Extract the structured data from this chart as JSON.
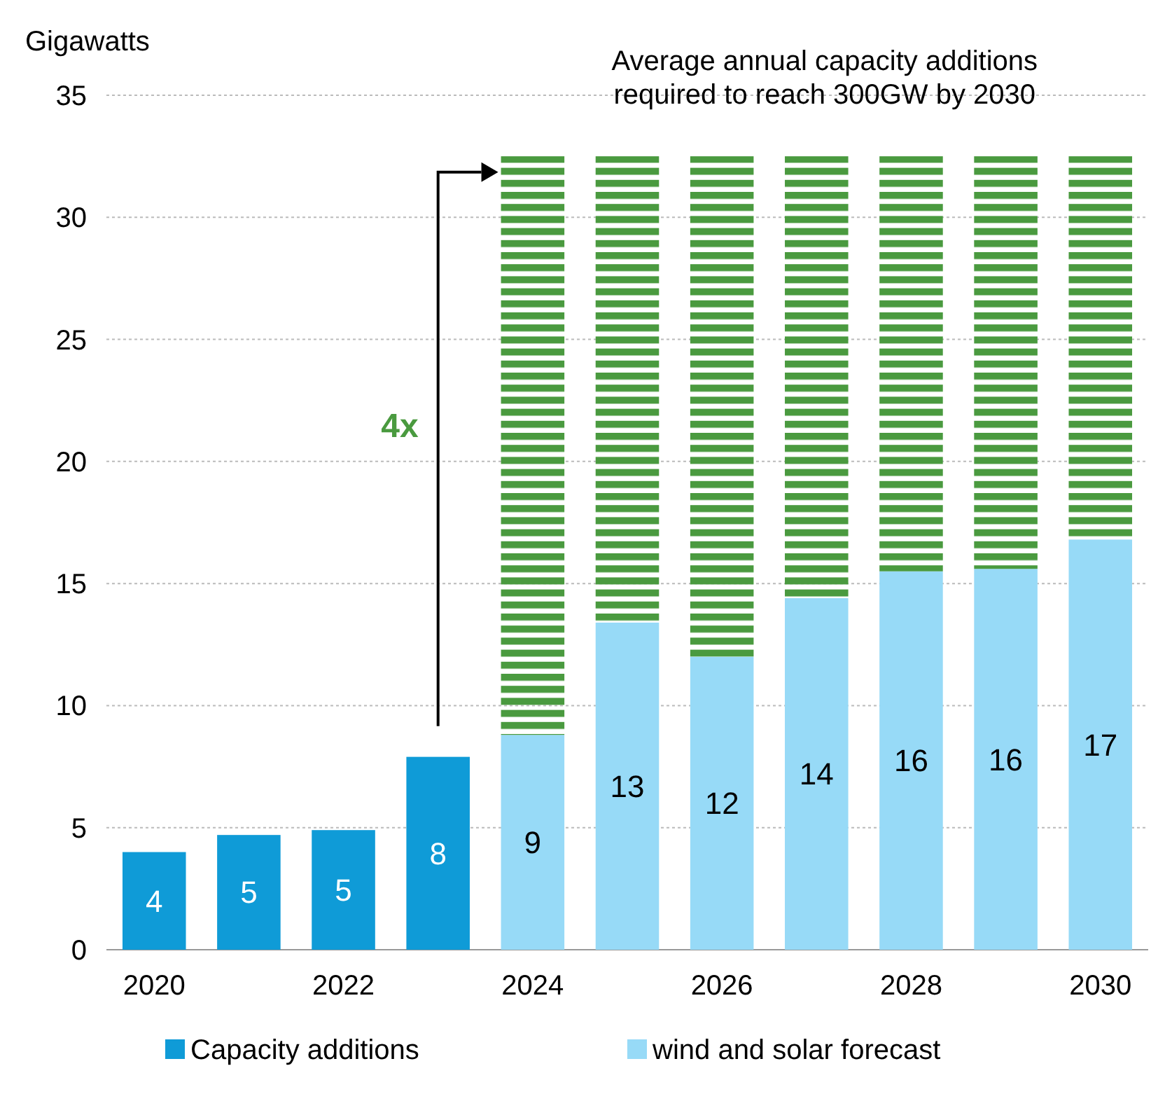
{
  "chart_data": {
    "type": "bar",
    "ylabel": "Gigawatts",
    "categories": [
      "2020",
      null,
      "2022",
      null,
      "2024",
      null,
      "2026",
      null,
      "2028",
      null,
      "2030"
    ],
    "stacked": true,
    "series": [
      {
        "name": "Capacity additions",
        "color": "#0f9bd7",
        "values": [
          4.0,
          4.7,
          4.9,
          7.9,
          null,
          null,
          null,
          null,
          null,
          null,
          null
        ],
        "value_labels": [
          "4",
          "5",
          "5",
          "8",
          null,
          null,
          null,
          null,
          null,
          null,
          null
        ]
      },
      {
        "name": "wind and solar forecast",
        "color": "#97daf7",
        "values": [
          null,
          null,
          null,
          null,
          8.8,
          13.4,
          12.0,
          14.4,
          15.5,
          15.6,
          16.8
        ],
        "value_labels": [
          null,
          null,
          null,
          null,
          "9",
          "13",
          "12",
          "14",
          "16",
          "16",
          "17"
        ]
      },
      {
        "color": "#4a9a3f",
        "values": [
          null,
          null,
          null,
          null,
          23.7,
          19.1,
          20.5,
          18.1,
          17.0,
          16.9,
          15.7
        ]
      }
    ],
    "ylim": [
      0,
      35
    ],
    "yticks": [
      0,
      5,
      10,
      15,
      20,
      25,
      30,
      35
    ],
    "grid": "y",
    "legend": "bottom",
    "annotations": [
      "Average annual capacity additions required to reach 300GW by 2030",
      "4x"
    ]
  }
}
